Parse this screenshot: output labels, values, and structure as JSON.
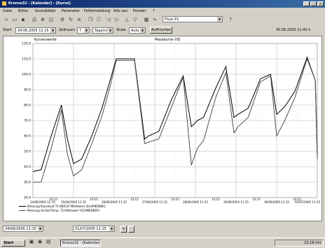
{
  "window": {
    "title": "Kronos32 - [Kalender] - [Kurve]"
  },
  "menu": {
    "items": [
      "Datei",
      "Editor",
      "Grundbilder",
      "Parameter",
      "Fehlermeldung",
      "Alle neu",
      "Fenster",
      "?"
    ]
  },
  "toolbar": {
    "combo_value": "Fluss P1"
  },
  "timebar": {
    "start_label": "Start",
    "start_value": "24.06.2005 11:15",
    "range_label": "Zeitraum",
    "range_value": "7",
    "range_unit": "Tage(n)",
    "scale_label": "Skala",
    "scale_value": "Auto",
    "update_button": "Auffrischen",
    "status_text": "30.06.2005 11:45 h"
  },
  "plot": {
    "left_title": "Kurvenwerte",
    "right_title": "Messkurve VIS"
  },
  "chart_data": {
    "type": "line",
    "ylim": [
      28,
      114
    ],
    "y_ticks": [
      "120.0",
      "110.0",
      "100.0",
      "90.0",
      "80.0",
      "70.0",
      "60.0",
      "50.0",
      "40.0",
      "30.0",
      "20.0"
    ],
    "x_ticks": [
      "24/06/2005 11:15",
      "25/06/2005 11:15",
      "26/06/2005 11:15",
      "27/06/2005 11:15",
      "28/06/2005 11:15",
      "29/06/2005 11:15",
      "30/06/2005 11:15",
      "01/07/2005 11:15"
    ],
    "x_subticks": [
      "23:15",
      "23:15",
      "23:15",
      "23:15",
      "23:15",
      "23:15",
      "23:15"
    ],
    "x": [
      0,
      0.2,
      0.45,
      0.7,
      0.85,
      1.0,
      1.2,
      1.45,
      1.7,
      1.9,
      2.05,
      2.25,
      2.5,
      2.75,
      2.85,
      3.1,
      3.4,
      3.7,
      3.9,
      4.05,
      4.2,
      4.5,
      4.75,
      4.95,
      5.05,
      5.3,
      5.6,
      5.85,
      6.0,
      6.2,
      6.45,
      6.75,
      6.95,
      7.0
    ],
    "series": [
      {
        "name": "Messung Ruecklauf T1-WDCLP Mittelwert (SCHMERBER)",
        "color": "#000000",
        "values": [
          37,
          38,
          60,
          80,
          58,
          42,
          45,
          60,
          78,
          96,
          110,
          110,
          110,
          58,
          60,
          63,
          83,
          99,
          66,
          70,
          72,
          91,
          105,
          72,
          74,
          78,
          97,
          100,
          74,
          79,
          89,
          111,
          96,
          48
        ]
      },
      {
        "name": "Messung Vorlauf-Temp. T2 Mittelwert (SCHMERBER)",
        "color": "#505050",
        "values": [
          30,
          30,
          52,
          77,
          48,
          34,
          38,
          55,
          73,
          92,
          109,
          109,
          109,
          55,
          56,
          58,
          78,
          98,
          41,
          52,
          57,
          85,
          101,
          62,
          66,
          72,
          95,
          99,
          60,
          70,
          85,
          110,
          96,
          45
        ]
      }
    ]
  },
  "bottom": {
    "cursor_value": "24/06/2005 11:15",
    "cursor_value_right": "01/07/2005 11:15"
  },
  "taskbar": {
    "start": "Start",
    "item": "Kronos32 - [Kalender]",
    "tray": "22:18 Uhr"
  }
}
